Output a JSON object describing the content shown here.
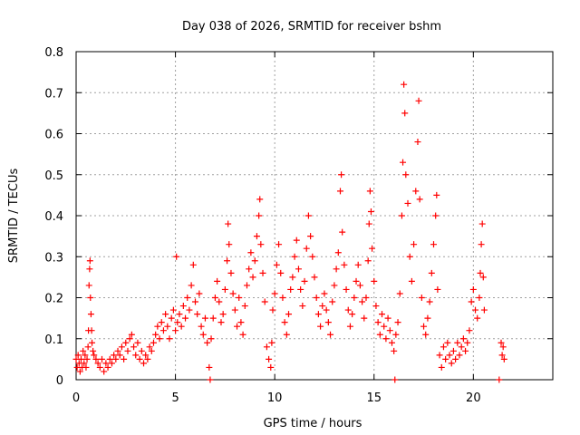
{
  "chart_data": {
    "type": "scatter",
    "title": "Day 038 of 2026, SRMTID for receiver bshm",
    "xlabel": "GPS time / hours",
    "ylabel": "SRMTID / TECUs",
    "xlim": [
      0,
      24
    ],
    "ylim": [
      0,
      0.8
    ],
    "xticks": [
      0,
      5,
      10,
      15,
      20
    ],
    "xtick_labels": [
      "0",
      "5",
      "10",
      "15",
      "20"
    ],
    "yticks": [
      0,
      0.1,
      0.2,
      0.3,
      0.4,
      0.5,
      0.6,
      0.7,
      0.8
    ],
    "ytick_labels": [
      "0",
      "0.1",
      "0.2",
      "0.3",
      "0.4",
      "0.5",
      "0.6",
      "0.7",
      "0.8"
    ],
    "grid": true,
    "marker": "plus",
    "color": "#ff0000",
    "series": [
      {
        "name": "SRMTID",
        "points": [
          [
            0.0,
            0.05
          ],
          [
            0.05,
            0.03
          ],
          [
            0.1,
            0.06
          ],
          [
            0.15,
            0.04
          ],
          [
            0.2,
            0.02
          ],
          [
            0.25,
            0.05
          ],
          [
            0.3,
            0.03
          ],
          [
            0.35,
            0.07
          ],
          [
            0.4,
            0.04
          ],
          [
            0.45,
            0.06
          ],
          [
            0.5,
            0.03
          ],
          [
            0.55,
            0.05
          ],
          [
            0.6,
            0.08
          ],
          [
            0.62,
            0.12
          ],
          [
            0.65,
            0.23
          ],
          [
            0.68,
            0.27
          ],
          [
            0.7,
            0.29
          ],
          [
            0.72,
            0.2
          ],
          [
            0.75,
            0.16
          ],
          [
            0.78,
            0.12
          ],
          [
            0.8,
            0.09
          ],
          [
            0.85,
            0.07
          ],
          [
            0.9,
            0.06
          ],
          [
            1.0,
            0.05
          ],
          [
            1.1,
            0.04
          ],
          [
            1.2,
            0.03
          ],
          [
            1.3,
            0.05
          ],
          [
            1.4,
            0.02
          ],
          [
            1.5,
            0.04
          ],
          [
            1.6,
            0.03
          ],
          [
            1.7,
            0.05
          ],
          [
            1.8,
            0.04
          ],
          [
            1.9,
            0.06
          ],
          [
            2.0,
            0.05
          ],
          [
            2.1,
            0.07
          ],
          [
            2.2,
            0.06
          ],
          [
            2.3,
            0.08
          ],
          [
            2.4,
            0.05
          ],
          [
            2.5,
            0.09
          ],
          [
            2.6,
            0.07
          ],
          [
            2.7,
            0.1
          ],
          [
            2.8,
            0.11
          ],
          [
            2.9,
            0.08
          ],
          [
            3.0,
            0.06
          ],
          [
            3.1,
            0.09
          ],
          [
            3.2,
            0.05
          ],
          [
            3.3,
            0.07
          ],
          [
            3.4,
            0.04
          ],
          [
            3.5,
            0.06
          ],
          [
            3.6,
            0.05
          ],
          [
            3.7,
            0.08
          ],
          [
            3.8,
            0.07
          ],
          [
            3.9,
            0.09
          ],
          [
            4.0,
            0.11
          ],
          [
            4.1,
            0.13
          ],
          [
            4.2,
            0.1
          ],
          [
            4.3,
            0.14
          ],
          [
            4.4,
            0.12
          ],
          [
            4.5,
            0.16
          ],
          [
            4.6,
            0.13
          ],
          [
            4.7,
            0.1
          ],
          [
            4.8,
            0.15
          ],
          [
            4.9,
            0.17
          ],
          [
            5.0,
            0.12
          ],
          [
            5.05,
            0.3
          ],
          [
            5.1,
            0.14
          ],
          [
            5.2,
            0.16
          ],
          [
            5.3,
            0.13
          ],
          [
            5.4,
            0.18
          ],
          [
            5.5,
            0.15
          ],
          [
            5.6,
            0.2
          ],
          [
            5.7,
            0.17
          ],
          [
            5.8,
            0.23
          ],
          [
            5.9,
            0.28
          ],
          [
            6.0,
            0.19
          ],
          [
            6.1,
            0.16
          ],
          [
            6.2,
            0.21
          ],
          [
            6.3,
            0.13
          ],
          [
            6.4,
            0.11
          ],
          [
            6.5,
            0.15
          ],
          [
            6.6,
            0.09
          ],
          [
            6.7,
            0.03
          ],
          [
            6.75,
            0.0
          ],
          [
            6.8,
            0.1
          ],
          [
            6.9,
            0.15
          ],
          [
            7.0,
            0.2
          ],
          [
            7.1,
            0.24
          ],
          [
            7.2,
            0.19
          ],
          [
            7.3,
            0.14
          ],
          [
            7.4,
            0.16
          ],
          [
            7.5,
            0.22
          ],
          [
            7.6,
            0.29
          ],
          [
            7.65,
            0.38
          ],
          [
            7.7,
            0.33
          ],
          [
            7.8,
            0.26
          ],
          [
            7.9,
            0.21
          ],
          [
            8.0,
            0.17
          ],
          [
            8.1,
            0.13
          ],
          [
            8.2,
            0.2
          ],
          [
            8.3,
            0.14
          ],
          [
            8.4,
            0.11
          ],
          [
            8.5,
            0.18
          ],
          [
            8.6,
            0.23
          ],
          [
            8.7,
            0.27
          ],
          [
            8.8,
            0.31
          ],
          [
            8.9,
            0.25
          ],
          [
            9.0,
            0.29
          ],
          [
            9.1,
            0.35
          ],
          [
            9.2,
            0.4
          ],
          [
            9.25,
            0.44
          ],
          [
            9.3,
            0.33
          ],
          [
            9.4,
            0.26
          ],
          [
            9.5,
            0.19
          ],
          [
            9.6,
            0.08
          ],
          [
            9.7,
            0.05
          ],
          [
            9.8,
            0.03
          ],
          [
            9.85,
            0.09
          ],
          [
            9.9,
            0.17
          ],
          [
            10.0,
            0.21
          ],
          [
            10.1,
            0.28
          ],
          [
            10.2,
            0.33
          ],
          [
            10.3,
            0.26
          ],
          [
            10.4,
            0.2
          ],
          [
            10.5,
            0.14
          ],
          [
            10.6,
            0.11
          ],
          [
            10.7,
            0.16
          ],
          [
            10.8,
            0.22
          ],
          [
            10.9,
            0.25
          ],
          [
            11.0,
            0.3
          ],
          [
            11.1,
            0.34
          ],
          [
            11.2,
            0.27
          ],
          [
            11.3,
            0.22
          ],
          [
            11.4,
            0.18
          ],
          [
            11.5,
            0.24
          ],
          [
            11.6,
            0.32
          ],
          [
            11.7,
            0.4
          ],
          [
            11.8,
            0.35
          ],
          [
            11.9,
            0.3
          ],
          [
            12.0,
            0.25
          ],
          [
            12.1,
            0.2
          ],
          [
            12.2,
            0.16
          ],
          [
            12.3,
            0.13
          ],
          [
            12.4,
            0.18
          ],
          [
            12.5,
            0.21
          ],
          [
            12.6,
            0.17
          ],
          [
            12.7,
            0.14
          ],
          [
            12.8,
            0.11
          ],
          [
            12.9,
            0.19
          ],
          [
            13.0,
            0.23
          ],
          [
            13.1,
            0.27
          ],
          [
            13.2,
            0.31
          ],
          [
            13.3,
            0.46
          ],
          [
            13.35,
            0.5
          ],
          [
            13.4,
            0.36
          ],
          [
            13.5,
            0.28
          ],
          [
            13.6,
            0.22
          ],
          [
            13.7,
            0.17
          ],
          [
            13.8,
            0.13
          ],
          [
            13.9,
            0.16
          ],
          [
            14.0,
            0.2
          ],
          [
            14.1,
            0.24
          ],
          [
            14.2,
            0.28
          ],
          [
            14.3,
            0.23
          ],
          [
            14.4,
            0.19
          ],
          [
            14.5,
            0.15
          ],
          [
            14.6,
            0.2
          ],
          [
            14.7,
            0.29
          ],
          [
            14.75,
            0.38
          ],
          [
            14.8,
            0.46
          ],
          [
            14.85,
            0.41
          ],
          [
            14.9,
            0.32
          ],
          [
            15.0,
            0.24
          ],
          [
            15.1,
            0.18
          ],
          [
            15.2,
            0.14
          ],
          [
            15.3,
            0.11
          ],
          [
            15.4,
            0.16
          ],
          [
            15.5,
            0.13
          ],
          [
            15.6,
            0.1
          ],
          [
            15.7,
            0.15
          ],
          [
            15.8,
            0.12
          ],
          [
            15.9,
            0.09
          ],
          [
            16.0,
            0.07
          ],
          [
            16.05,
            0.0
          ],
          [
            16.1,
            0.11
          ],
          [
            16.2,
            0.14
          ],
          [
            16.3,
            0.21
          ],
          [
            16.4,
            0.4
          ],
          [
            16.45,
            0.53
          ],
          [
            16.5,
            0.72
          ],
          [
            16.55,
            0.65
          ],
          [
            16.6,
            0.5
          ],
          [
            16.7,
            0.43
          ],
          [
            16.8,
            0.3
          ],
          [
            16.9,
            0.24
          ],
          [
            17.0,
            0.33
          ],
          [
            17.1,
            0.46
          ],
          [
            17.2,
            0.58
          ],
          [
            17.25,
            0.68
          ],
          [
            17.3,
            0.44
          ],
          [
            17.4,
            0.2
          ],
          [
            17.5,
            0.13
          ],
          [
            17.6,
            0.11
          ],
          [
            17.7,
            0.15
          ],
          [
            17.8,
            0.19
          ],
          [
            17.9,
            0.26
          ],
          [
            18.0,
            0.33
          ],
          [
            18.1,
            0.4
          ],
          [
            18.15,
            0.45
          ],
          [
            18.2,
            0.22
          ],
          [
            18.3,
            0.06
          ],
          [
            18.4,
            0.03
          ],
          [
            18.5,
            0.08
          ],
          [
            18.6,
            0.05
          ],
          [
            18.7,
            0.09
          ],
          [
            18.8,
            0.06
          ],
          [
            18.9,
            0.04
          ],
          [
            19.0,
            0.07
          ],
          [
            19.1,
            0.05
          ],
          [
            19.2,
            0.09
          ],
          [
            19.3,
            0.06
          ],
          [
            19.4,
            0.08
          ],
          [
            19.5,
            0.1
          ],
          [
            19.6,
            0.07
          ],
          [
            19.7,
            0.09
          ],
          [
            19.8,
            0.12
          ],
          [
            19.9,
            0.19
          ],
          [
            20.0,
            0.22
          ],
          [
            20.1,
            0.17
          ],
          [
            20.2,
            0.15
          ],
          [
            20.3,
            0.2
          ],
          [
            20.35,
            0.26
          ],
          [
            20.4,
            0.33
          ],
          [
            20.45,
            0.38
          ],
          [
            20.5,
            0.25
          ],
          [
            20.55,
            0.17
          ],
          [
            21.3,
            0.0
          ],
          [
            21.4,
            0.09
          ],
          [
            21.45,
            0.06
          ],
          [
            21.5,
            0.08
          ],
          [
            21.55,
            0.05
          ]
        ]
      }
    ]
  }
}
